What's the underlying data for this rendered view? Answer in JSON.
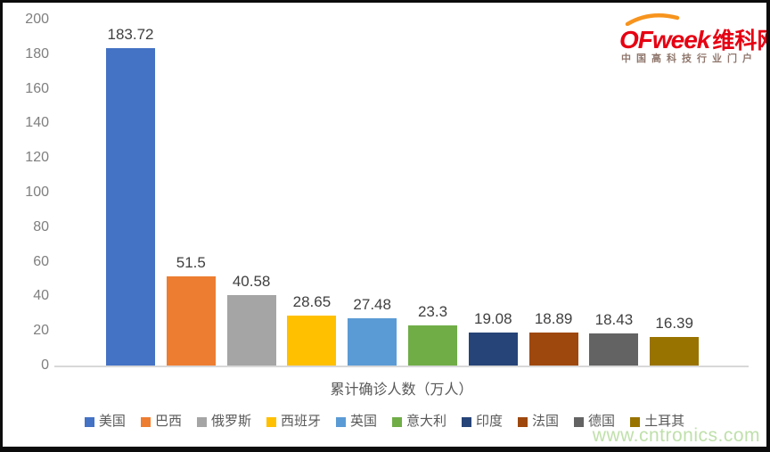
{
  "logo": {
    "brand": "OFweek",
    "brand_cn": "维科网",
    "tagline": "中国高科技行业门户",
    "brand_color": "#e60012",
    "arc_color": "#f7941d"
  },
  "watermark": "www.cntronics.com",
  "chart_data": {
    "type": "bar",
    "title": "",
    "categories": [
      "美国",
      "巴西",
      "俄罗斯",
      "西班牙",
      "英国",
      "意大利",
      "印度",
      "法国",
      "德国",
      "土耳其"
    ],
    "values": [
      183.72,
      51.5,
      40.58,
      28.65,
      27.48,
      23.3,
      19.08,
      18.89,
      18.43,
      16.39
    ],
    "value_labels": [
      "183.72",
      "51.5",
      "40.58",
      "28.65",
      "27.48",
      "23.3",
      "19.08",
      "18.89",
      "18.43",
      "16.39"
    ],
    "colors": [
      "#4472C4",
      "#ED7D31",
      "#A5A5A5",
      "#FFC000",
      "#5B9BD5",
      "#70AD47",
      "#264478",
      "#9E480E",
      "#636363",
      "#997300"
    ],
    "xlabel": "累计确诊人数（万人）",
    "ylabel": "",
    "ylim": [
      0,
      200
    ],
    "y_ticks": [
      0,
      20,
      40,
      60,
      80,
      100,
      120,
      140,
      160,
      180,
      200
    ],
    "grid": false,
    "legend_position": "bottom"
  }
}
